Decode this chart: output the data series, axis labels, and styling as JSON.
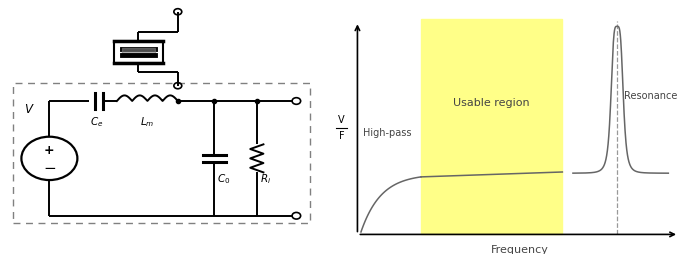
{
  "fig_width": 6.86,
  "fig_height": 2.55,
  "dpi": 100,
  "bg_color": "#ffffff",
  "yellow_region_color": "#ffff88",
  "curve_color": "#666666",
  "dashed_color": "#999999",
  "text_color": "#444444",
  "annotations": {
    "high_pass": "High-pass",
    "usable_region": "Usable region",
    "resonance": "Resonance",
    "frequency": "Frequency",
    "ylabel_top": "V",
    "ylabel_bot": "F"
  }
}
